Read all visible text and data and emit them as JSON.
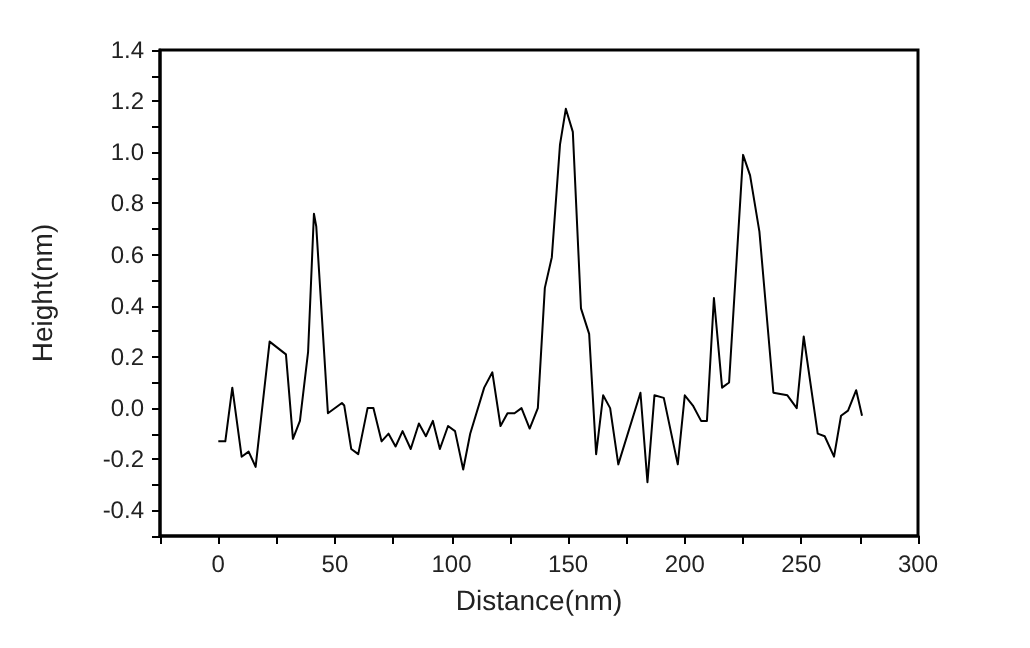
{
  "chart_data": {
    "type": "line",
    "xlabel": "Distance(nm)",
    "ylabel": "Height(nm)",
    "xlim": [
      -25,
      300
    ],
    "xticks": [
      {
        "value": -25,
        "label": null
      },
      0,
      {
        "value": 25,
        "label": null
      },
      50,
      {
        "value": 75,
        "label": null
      },
      100,
      {
        "value": 125,
        "label": null
      },
      150,
      {
        "value": 175,
        "label": null
      },
      200,
      {
        "value": 225,
        "label": null
      },
      250,
      {
        "value": 275,
        "label": null
      },
      300
    ],
    "ylim": [
      -0.5,
      1.4
    ],
    "yticks": [
      {
        "value": -0.5,
        "label": null
      },
      {
        "value": -0.4,
        "label": "-0.4"
      },
      {
        "value": -0.3,
        "label": null
      },
      {
        "value": -0.2,
        "label": "-0.2"
      },
      {
        "value": -0.1,
        "label": null
      },
      {
        "value": 0,
        "label": "0.0"
      },
      {
        "value": 0.1,
        "label": null
      },
      {
        "value": 0.2,
        "label": "0.2"
      },
      {
        "value": 0.3,
        "label": null
      },
      {
        "value": 0.4,
        "label": "0.4"
      },
      {
        "value": 0.5,
        "label": null
      },
      {
        "value": 0.6,
        "label": "0.6"
      },
      {
        "value": 0.7,
        "label": null
      },
      {
        "value": 0.8,
        "label": "0.8"
      },
      {
        "value": 0.9,
        "label": null
      },
      {
        "value": 1.0,
        "label": "1.0"
      },
      {
        "value": 1.1,
        "label": null
      },
      {
        "value": 1.2,
        "label": "1.2"
      },
      {
        "value": 1.3,
        "label": null
      },
      {
        "value": 1.4,
        "label": "1.4"
      }
    ],
    "grid": false,
    "marker": "none",
    "line_style": "solid",
    "x": [
      0,
      3,
      6,
      10,
      13,
      16,
      22,
      29,
      32,
      35,
      38.5,
      41,
      42,
      47,
      53,
      54,
      57,
      60,
      64,
      66.5,
      70,
      73,
      76,
      79,
      82.5,
      86,
      89,
      92,
      95,
      98.5,
      101.5,
      105,
      108,
      114,
      117.5,
      121,
      124,
      127,
      130,
      133.5,
      137,
      140,
      143,
      146.5,
      149,
      152,
      155.5,
      159,
      162,
      165,
      168,
      171.5,
      181,
      184,
      187,
      191,
      197,
      200,
      203.5,
      207,
      209.5,
      212.5,
      216,
      219,
      225,
      228,
      232,
      238,
      244,
      248,
      251,
      257,
      260,
      264,
      267,
      270,
      273.5,
      276
    ],
    "series": [
      {
        "color": "#000000",
        "values": [
          -0.13,
          -0.13,
          0.08,
          -0.19,
          -0.17,
          -0.23,
          0.26,
          0.21,
          -0.12,
          -0.05,
          0.22,
          0.76,
          0.71,
          -0.02,
          0.02,
          0.01,
          -0.16,
          -0.18,
          0,
          0,
          -0.13,
          -0.1,
          -0.15,
          -0.09,
          -0.16,
          -0.06,
          -0.11,
          -0.05,
          -0.16,
          -0.07,
          -0.09,
          -0.24,
          -0.1,
          0.08,
          0.14,
          -0.07,
          -0.02,
          -0.02,
          0,
          -0.08,
          0,
          0.47,
          0.59,
          1.03,
          1.17,
          1.08,
          0.39,
          0.29,
          -0.18,
          0.05,
          0,
          -0.22,
          0.06,
          -0.29,
          0.05,
          0.04,
          -0.22,
          0.05,
          0.01,
          -0.05,
          -0.05,
          0.43,
          0.08,
          0.1,
          0.99,
          0.91,
          0.69,
          0.06,
          0.05,
          0,
          0.28,
          -0.1,
          -0.11,
          -0.19,
          -0.03,
          -0.01,
          0.07,
          -0.03
        ]
      }
    ]
  }
}
